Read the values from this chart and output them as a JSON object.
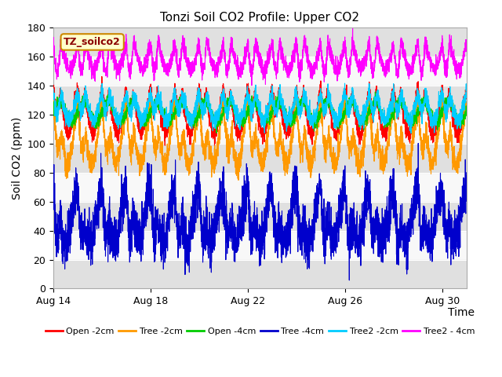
{
  "title": "Tonzi Soil CO2 Profile: Upper CO2",
  "ylabel": "Soil CO2 (ppm)",
  "xlabel": "Time",
  "ylim": [
    0,
    180
  ],
  "legend_label": "TZ_soilco2",
  "series": [
    {
      "name": "Open -2cm",
      "color": "#ff0000",
      "base": 125,
      "amp": 18,
      "noise": 3,
      "dip": 20
    },
    {
      "name": "Tree -2cm",
      "color": "#ff9900",
      "base": 108,
      "amp": 22,
      "noise": 4,
      "dip": 30
    },
    {
      "name": "Open -4cm",
      "color": "#00cc00",
      "base": 122,
      "amp": 7,
      "noise": 2,
      "dip": 0
    },
    {
      "name": "Tree -4cm",
      "color": "#0000cc",
      "base": 50,
      "amp": 18,
      "noise": 8,
      "dip": 25
    },
    {
      "name": "Tree2 -2cm",
      "color": "#00ccff",
      "base": 128,
      "amp": 12,
      "noise": 3,
      "dip": 18
    },
    {
      "name": "Tree2 - 4cm",
      "color": "#ff00ff",
      "base": 163,
      "amp": 12,
      "noise": 3,
      "dip": 25
    }
  ],
  "start_day": 14,
  "end_day": 31,
  "n_points": 4080,
  "xtick_days": [
    14,
    18,
    22,
    26,
    30
  ],
  "xticklabels": [
    "Aug 14",
    "Aug 18",
    "Aug 22",
    "Aug 26",
    "Aug 30"
  ],
  "band_ranges": [
    [
      0,
      20
    ],
    [
      40,
      60
    ],
    [
      80,
      100
    ],
    [
      120,
      140
    ],
    [
      160,
      180
    ]
  ],
  "band_color": "#e0e0e0",
  "plot_bg": "#ebebeb",
  "white_band_color": "#f8f8f8"
}
